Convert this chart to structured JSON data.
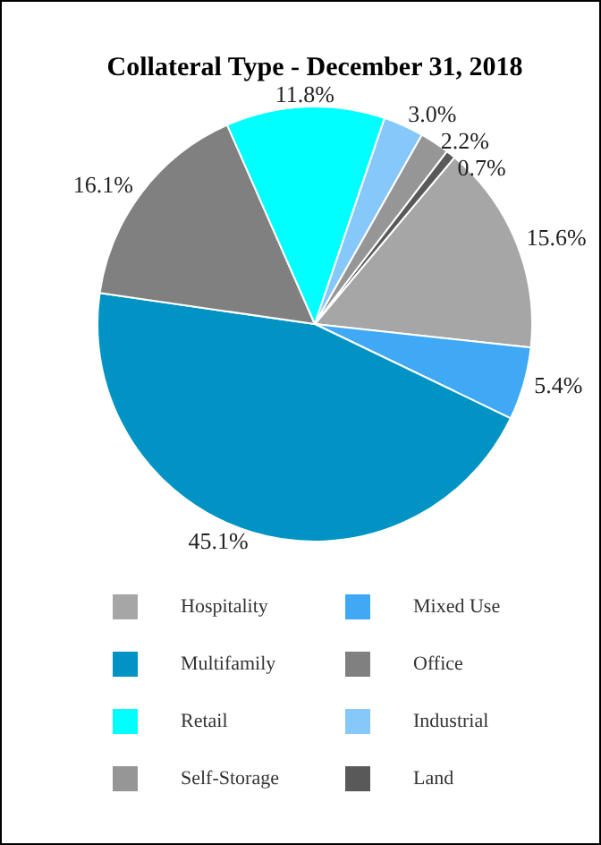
{
  "chart_data": {
    "type": "pie",
    "title": "Collateral Type - December 31, 2018",
    "categories": [
      "Hospitality",
      "Mixed Use",
      "Multifamily",
      "Office",
      "Retail",
      "Industrial",
      "Self-Storage",
      "Land"
    ],
    "values": [
      15.6,
      5.4,
      45.1,
      16.1,
      11.8,
      3.0,
      2.2,
      0.7
    ],
    "value_labels": [
      "15.6%",
      "5.4%",
      "45.1%",
      "16.1%",
      "11.8%",
      "3.0%",
      "2.2%",
      "0.7%"
    ],
    "colors": [
      "#a6a6a6",
      "#3fa9f5",
      "#0093c4",
      "#808080",
      "#00ffff",
      "#87c8fa",
      "#969696",
      "#595959"
    ],
    "legend": "bottom"
  }
}
